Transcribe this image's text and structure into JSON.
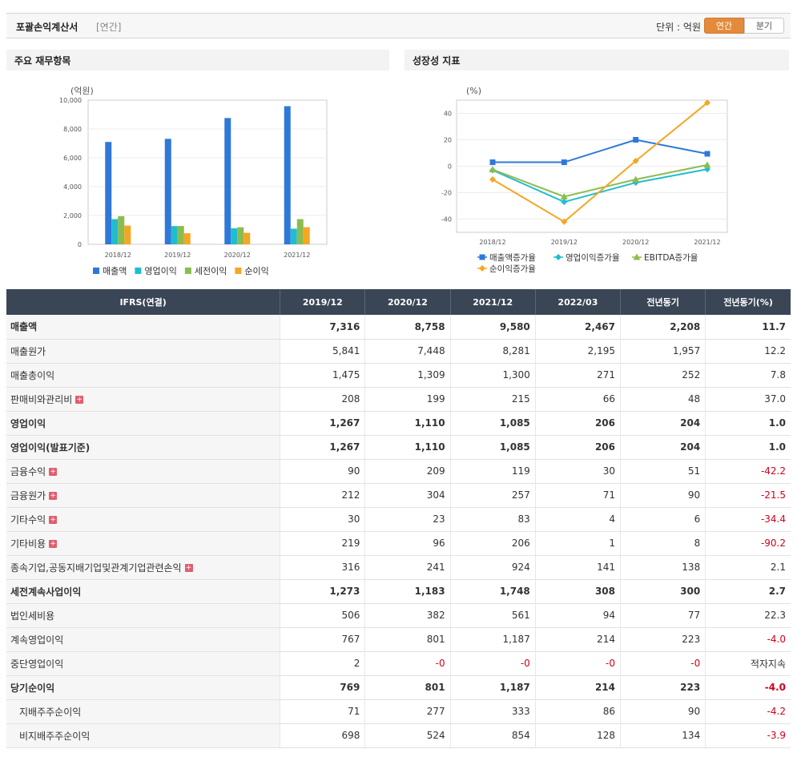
{
  "header": {
    "title": "포괄손익계산서",
    "period": "[연간]",
    "unit": "단위 : 억원",
    "tab_annual": "연간",
    "tab_quarter": "분기"
  },
  "left_panel": {
    "title": "주요 재무항목"
  },
  "right_panel": {
    "title": "성장성 지표"
  },
  "colors": {
    "accent": "#e58a3a",
    "header_bg": "#3a4656",
    "negative": "#d0021b"
  },
  "chart_data": [
    {
      "type": "bar",
      "ylabel": "(억원)",
      "categories": [
        "2018/12",
        "2019/12",
        "2020/12",
        "2021/12"
      ],
      "ylim": [
        0,
        10000
      ],
      "yticks": [
        "0",
        "2,000",
        "4,000",
        "6,000",
        "8,000",
        "10,000"
      ],
      "legend_position": "bottom",
      "series": [
        {
          "name": "매출액",
          "color": "#2f78d8",
          "values": [
            7100,
            7316,
            8758,
            9580
          ]
        },
        {
          "name": "영업이익",
          "color": "#22bcd0",
          "values": [
            1750,
            1267,
            1110,
            1085
          ]
        },
        {
          "name": "세전이익",
          "color": "#8cbc4f",
          "values": [
            1950,
            1273,
            1183,
            1748
          ]
        },
        {
          "name": "순이익",
          "color": "#f5a623",
          "values": [
            1300,
            769,
            801,
            1187
          ]
        }
      ]
    },
    {
      "type": "line",
      "ylabel": "(%)",
      "categories": [
        "2018/12",
        "2019/12",
        "2020/12",
        "2021/12"
      ],
      "ylim": [
        -50,
        50
      ],
      "yticks": [
        "-40",
        "-20",
        "0",
        "20",
        "40"
      ],
      "legend_position": "bottom",
      "series": [
        {
          "name": "매출액증가율",
          "color": "#2f78d8",
          "marker": "square",
          "values": [
            3,
            3,
            20,
            9.4
          ]
        },
        {
          "name": "영업이익증가율",
          "color": "#22bcd0",
          "marker": "diamond",
          "values": [
            -3,
            -27,
            -12.4,
            -2.3
          ]
        },
        {
          "name": "EBITDA증가율",
          "color": "#8cbc4f",
          "marker": "triangle",
          "values": [
            -2.5,
            -23,
            -10,
            1
          ]
        },
        {
          "name": "순이익증가율",
          "color": "#f5a623",
          "marker": "diamond",
          "values": [
            -10,
            -42,
            4,
            48
          ]
        }
      ]
    }
  ],
  "table": {
    "columns": [
      "IFRS(연결)",
      "2019/12",
      "2020/12",
      "2021/12",
      "2022/03",
      "전년동기",
      "전년동기(%)"
    ],
    "rows": [
      {
        "label": "매출액",
        "values": [
          "7,316",
          "8,758",
          "9,580",
          "2,467",
          "2,208",
          "11.7"
        ],
        "bold": true,
        "sec": false,
        "plus": false,
        "indent": false
      },
      {
        "label": "매출원가",
        "values": [
          "5,841",
          "7,448",
          "8,281",
          "2,195",
          "1,957",
          "12.2"
        ],
        "bold": false,
        "sec": false,
        "plus": false,
        "indent": false
      },
      {
        "label": "매출총이익",
        "values": [
          "1,475",
          "1,309",
          "1,300",
          "271",
          "252",
          "7.8"
        ],
        "bold": false,
        "sec": false,
        "plus": false,
        "indent": false
      },
      {
        "label": "판매비와관리비",
        "values": [
          "208",
          "199",
          "215",
          "66",
          "48",
          "37.0"
        ],
        "bold": false,
        "sec": false,
        "plus": true,
        "indent": false
      },
      {
        "label": "영업이익",
        "values": [
          "1,267",
          "1,110",
          "1,085",
          "206",
          "204",
          "1.0"
        ],
        "bold": true,
        "sec": true,
        "plus": false,
        "indent": false
      },
      {
        "label": "영업이익(발표기준)",
        "values": [
          "1,267",
          "1,110",
          "1,085",
          "206",
          "204",
          "1.0"
        ],
        "bold": true,
        "sec": false,
        "plus": false,
        "indent": false
      },
      {
        "label": "금융수익",
        "values": [
          "90",
          "209",
          "119",
          "30",
          "51",
          "-42.2"
        ],
        "bold": false,
        "sec": true,
        "plus": true,
        "indent": false
      },
      {
        "label": "금융원가",
        "values": [
          "212",
          "304",
          "257",
          "71",
          "90",
          "-21.5"
        ],
        "bold": false,
        "sec": true,
        "plus": true,
        "indent": false
      },
      {
        "label": "기타수익",
        "values": [
          "30",
          "23",
          "83",
          "4",
          "6",
          "-34.4"
        ],
        "bold": false,
        "sec": true,
        "plus": true,
        "indent": false
      },
      {
        "label": "기타비용",
        "values": [
          "219",
          "96",
          "206",
          "1",
          "8",
          "-90.2"
        ],
        "bold": false,
        "sec": true,
        "plus": true,
        "indent": false
      },
      {
        "label": "종속기업,공동지배기업및관계기업관련손익",
        "values": [
          "316",
          "241",
          "924",
          "141",
          "138",
          "2.1"
        ],
        "bold": false,
        "sec": true,
        "plus": true,
        "indent": false
      },
      {
        "label": "세전계속사업이익",
        "values": [
          "1,273",
          "1,183",
          "1,748",
          "308",
          "300",
          "2.7"
        ],
        "bold": true,
        "sec": true,
        "plus": false,
        "indent": false
      },
      {
        "label": "법인세비용",
        "values": [
          "506",
          "382",
          "561",
          "94",
          "77",
          "22.3"
        ],
        "bold": false,
        "sec": false,
        "plus": false,
        "indent": false
      },
      {
        "label": "계속영업이익",
        "values": [
          "767",
          "801",
          "1,187",
          "214",
          "223",
          "-4.0"
        ],
        "bold": false,
        "sec": false,
        "plus": false,
        "indent": false
      },
      {
        "label": "중단영업이익",
        "values": [
          "2",
          "-0",
          "-0",
          "-0",
          "-0",
          "적자지속"
        ],
        "bold": false,
        "sec": false,
        "plus": false,
        "indent": false
      },
      {
        "label": "당기순이익",
        "values": [
          "769",
          "801",
          "1,187",
          "214",
          "223",
          "-4.0"
        ],
        "bold": true,
        "sec": false,
        "plus": false,
        "indent": false
      },
      {
        "label": "지배주주순이익",
        "values": [
          "71",
          "277",
          "333",
          "86",
          "90",
          "-4.2"
        ],
        "bold": false,
        "sec": false,
        "plus": false,
        "indent": true
      },
      {
        "label": "비지배주주순이익",
        "values": [
          "698",
          "524",
          "854",
          "128",
          "134",
          "-3.9"
        ],
        "bold": false,
        "sec": false,
        "plus": false,
        "indent": true
      }
    ]
  }
}
